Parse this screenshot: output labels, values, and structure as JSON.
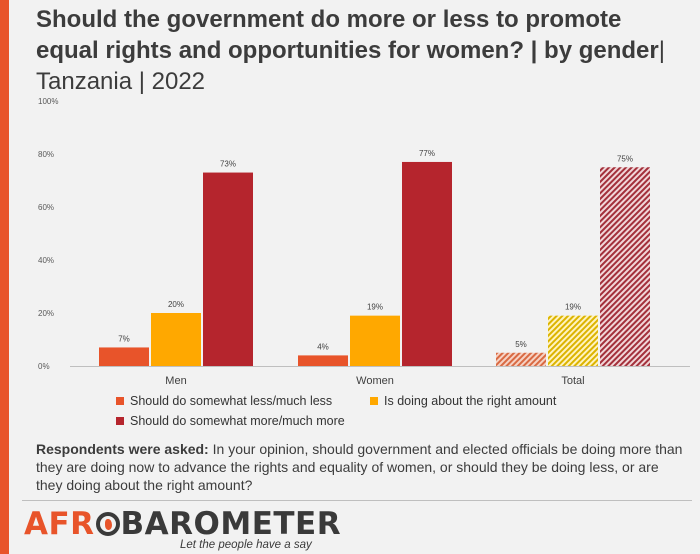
{
  "title": {
    "bold": "Should the government do more or less to promote equal rights and opportunities for women? | by gender",
    "light": "| Tanzania | 2022"
  },
  "colors": {
    "accent": "#e8542a",
    "less": "#e8542a",
    "right": "#ffa800",
    "more": "#b5252d"
  },
  "chart_data": {
    "type": "bar",
    "categories": [
      "Men",
      "Women",
      "Total"
    ],
    "ylim": [
      0,
      100
    ],
    "yticks": [
      "0%",
      "20%",
      "40%",
      "60%",
      "80%",
      "100%"
    ],
    "ytick_values": [
      0,
      20,
      40,
      60,
      80,
      100
    ],
    "grid": false,
    "legend_position": "bottom",
    "total_bars_hatched": true,
    "series": [
      {
        "name": "Should do somewhat less/much less",
        "values": [
          7,
          4,
          5
        ],
        "labels": [
          "7%",
          "4%",
          "5%"
        ]
      },
      {
        "name": "Is doing about the right amount",
        "values": [
          20,
          19,
          19
        ],
        "labels": [
          "20%",
          "19%",
          "19%"
        ]
      },
      {
        "name": "Should do somewhat more/much more",
        "values": [
          73,
          77,
          75
        ],
        "labels": [
          "73%",
          "77%",
          "75%"
        ]
      }
    ]
  },
  "question": {
    "label": "Respondents were asked:",
    "text": "In your opinion, should government and elected officials be doing more than they are doing now to advance the rights and equality of women, or should they be doing less, or are they doing about the right amount?"
  },
  "logo": {
    "part1": "AFR",
    "part2": "BAROMETER",
    "tagline": "Let the people have a say"
  }
}
